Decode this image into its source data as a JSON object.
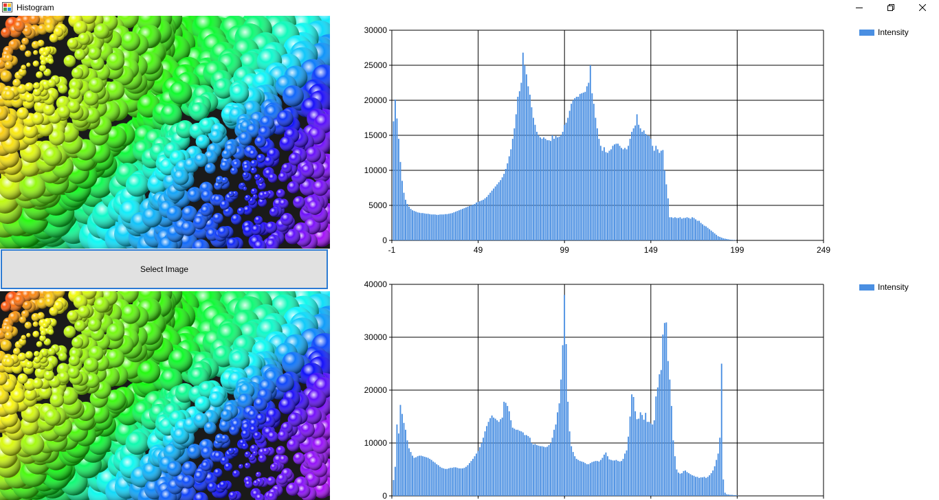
{
  "window": {
    "title": "Histogram",
    "minimize_icon": "minimize-icon",
    "maximize_icon": "restore-icon",
    "close_icon": "close-icon"
  },
  "select_button": {
    "label": "Select Image"
  },
  "colors": {
    "bar": "#4a8fe2",
    "button_border": "#2c7bd3",
    "button_bg": "#e1e1e1"
  },
  "charts": [
    {
      "legend": "Intensity",
      "ymax": 30000,
      "yticks": [
        "0",
        "5000",
        "10000",
        "15000",
        "20000",
        "25000",
        "30000"
      ],
      "xticks": [
        "-1",
        "49",
        "99",
        "149",
        "199",
        "249"
      ]
    },
    {
      "legend": "Intensity",
      "ymax": 40000,
      "yticks": [
        "0",
        "10000",
        "20000",
        "30000",
        "40000"
      ],
      "xticks": []
    }
  ],
  "chart_data": [
    {
      "type": "bar",
      "series": [
        {
          "name": "Intensity",
          "x_start": 0,
          "values": [
            17000,
            20100,
            17400,
            14500,
            11200,
            8500,
            6800,
            5800,
            5200,
            4800,
            4500,
            4300,
            4200,
            4100,
            4000,
            3950,
            3900,
            3900,
            3850,
            3800,
            3800,
            3750,
            3700,
            3700,
            3700,
            3650,
            3650,
            3700,
            3700,
            3700,
            3750,
            3750,
            3800,
            3850,
            3900,
            4000,
            4100,
            4200,
            4300,
            4400,
            4500,
            4600,
            4700,
            4800,
            4900,
            5000,
            5100,
            5200,
            5400,
            5500,
            5600,
            5700,
            5800,
            6000,
            6200,
            6500,
            6800,
            7100,
            7400,
            7700,
            8000,
            8300,
            8600,
            9000,
            9500,
            10200,
            11000,
            12000,
            13000,
            14500,
            16000,
            18000,
            20500,
            21300,
            22500,
            26800,
            25000,
            23700,
            22000,
            20800,
            19000,
            17500,
            16500,
            15500,
            15000,
            14700,
            14500,
            14700,
            14500,
            14300,
            14300,
            14200,
            15000,
            14500,
            14900,
            14700,
            14800,
            15000,
            15500,
            16500,
            16800,
            17500,
            18500,
            19500,
            20000,
            20300,
            20500,
            20500,
            20900,
            21000,
            21100,
            21200,
            22000,
            22500,
            25000,
            21000,
            19500,
            17500,
            16000,
            14500,
            13500,
            12800,
            13300,
            12600,
            12500,
            12800,
            13000,
            13500,
            13700,
            13800,
            13800,
            13500,
            13200,
            13000,
            13200,
            13000,
            13500,
            14500,
            15500,
            16000,
            16400,
            18000,
            16500,
            16000,
            15500,
            15700,
            15200,
            15000,
            14900,
            14500,
            13500,
            12800,
            13500,
            13000,
            12500,
            12800,
            12900,
            10000,
            8000,
            6000,
            3300,
            3300,
            3200,
            3300,
            3200,
            3200,
            3300,
            3100,
            3200,
            3200,
            3300,
            3200,
            3100,
            3300,
            3200,
            3000,
            2800,
            2800,
            2500,
            2300,
            2100,
            2000,
            1800,
            1600,
            1400,
            1200,
            1000,
            800,
            600,
            500,
            400,
            300,
            250,
            200,
            150,
            100,
            80,
            60,
            40
          ]
        }
      ],
      "xlim": [
        -1,
        249
      ],
      "ylim": [
        0,
        30000
      ],
      "xticks": [
        "-1",
        "49",
        "99",
        "149",
        "199",
        "249"
      ],
      "yticks": [
        "0",
        "5000",
        "10000",
        "15000",
        "20000",
        "25000",
        "30000"
      ],
      "grid": true,
      "legend_position": "top-right"
    },
    {
      "type": "bar",
      "series": [
        {
          "name": "Intensity",
          "x_start": 0,
          "values": [
            3000,
            5500,
            13500,
            11800,
            17200,
            15500,
            13800,
            12500,
            10500,
            9000,
            8300,
            7600,
            7200,
            7300,
            7500,
            7600,
            7600,
            7500,
            7400,
            7300,
            7200,
            7000,
            6800,
            6500,
            6300,
            6000,
            5800,
            5500,
            5300,
            5200,
            5100,
            5100,
            5200,
            5300,
            5300,
            5400,
            5400,
            5300,
            5200,
            5200,
            5200,
            5300,
            5500,
            5800,
            6200,
            6600,
            7000,
            7500,
            8000,
            8500,
            9200,
            10000,
            11000,
            12200,
            13200,
            14000,
            14700,
            15200,
            14800,
            14600,
            14300,
            14000,
            14500,
            14800,
            17800,
            17600,
            17000,
            16000,
            14300,
            12900,
            12700,
            12500,
            12500,
            12300,
            12200,
            12000,
            11500,
            11500,
            11300,
            11000,
            10000,
            9700,
            9800,
            9600,
            9500,
            9400,
            9400,
            9300,
            9200,
            9300,
            9600,
            10000,
            11000,
            12500,
            13500,
            15800,
            17500,
            22000,
            28500,
            38000,
            28700,
            17800,
            12200,
            9400,
            8300,
            7500,
            7000,
            6800,
            6600,
            6500,
            6400,
            6200,
            6000,
            6000,
            6200,
            6400,
            6500,
            6600,
            6600,
            6500,
            6800,
            7200,
            7800,
            8200,
            7500,
            6900,
            6800,
            6700,
            6700,
            6800,
            6600,
            6500,
            6600,
            7000,
            8000,
            8600,
            11200,
            15000,
            19200,
            18700,
            16000,
            14500,
            14600,
            15800,
            15300,
            14400,
            15700,
            14000,
            14000,
            13700,
            13500,
            14300,
            18800,
            20500,
            23000,
            23800,
            30500,
            32700,
            32800,
            25500,
            22000,
            17000,
            10500,
            7500,
            5000,
            4400,
            4200,
            4300,
            4700,
            4800,
            4500,
            4300,
            4100,
            3900,
            3800,
            3600,
            3600,
            3400,
            3500,
            3500,
            3600,
            3400,
            3600,
            3900,
            4300,
            4800,
            5600,
            6800,
            8000,
            11000,
            25000,
            3100,
            600,
            300,
            250,
            200,
            200,
            150,
            150,
            100
          ]
        }
      ],
      "ylim": [
        0,
        40000
      ],
      "yticks": [
        "0",
        "10000",
        "20000",
        "30000",
        "40000"
      ],
      "grid": true,
      "legend_position": "top-right"
    }
  ]
}
